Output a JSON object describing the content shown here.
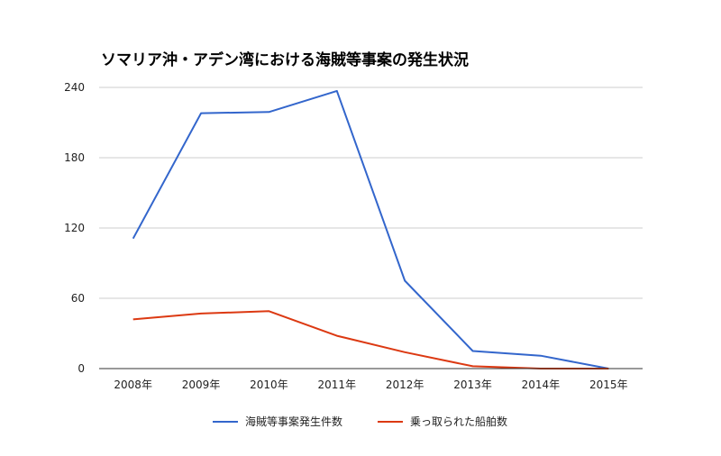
{
  "chart_data": {
    "type": "line",
    "title": "ソマリア沖・アデン湾における海賊等事案の発生状況",
    "categories": [
      "2008年",
      "2009年",
      "2010年",
      "2011年",
      "2012年",
      "2013年",
      "2014年",
      "2015年"
    ],
    "ylim": [
      0,
      240
    ],
    "yticks": [
      "0",
      "60",
      "120",
      "180",
      "240"
    ],
    "grid": true,
    "legend_position": "bottom",
    "series": [
      {
        "name": "海賊等事案発生件数",
        "color": "#3366cc",
        "values": [
          111,
          218,
          219,
          237,
          75,
          15,
          11,
          0
        ]
      },
      {
        "name": "乗っ取られた船舶数",
        "color": "#dc3912",
        "values": [
          42,
          47,
          49,
          28,
          14,
          2,
          0,
          0
        ]
      }
    ]
  }
}
